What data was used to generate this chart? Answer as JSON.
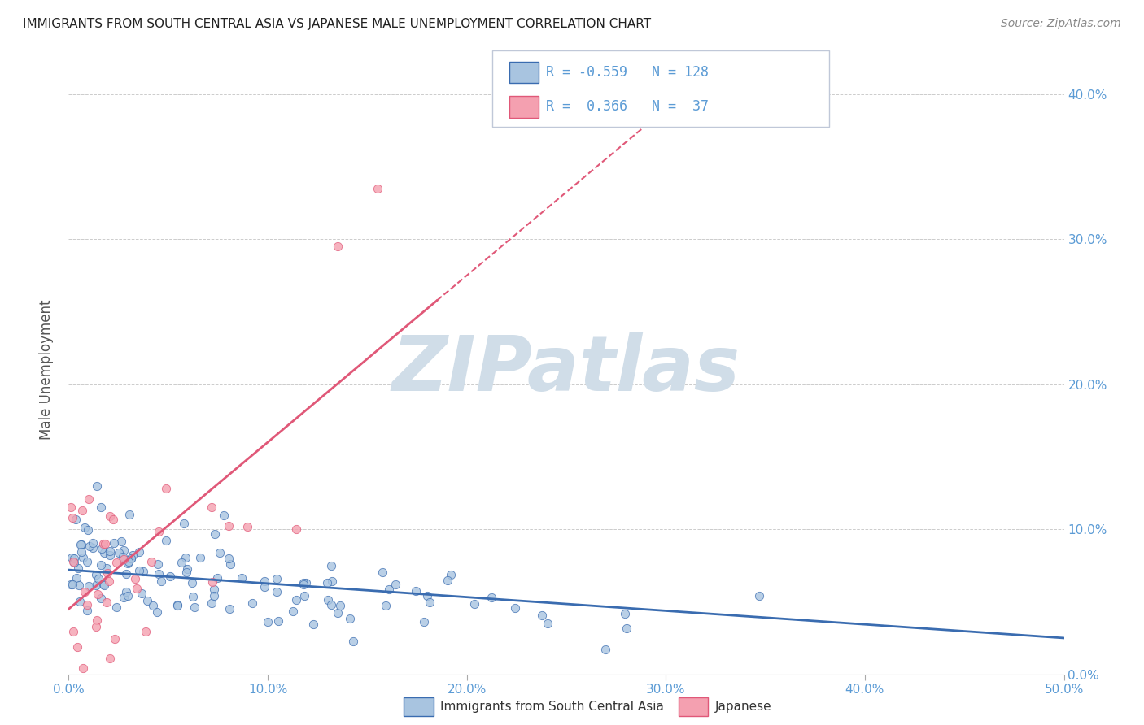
{
  "title": "IMMIGRANTS FROM SOUTH CENTRAL ASIA VS JAPANESE MALE UNEMPLOYMENT CORRELATION CHART",
  "source": "Source: ZipAtlas.com",
  "ylabel": "Male Unemployment",
  "xlim": [
    0.0,
    0.5
  ],
  "ylim": [
    0.0,
    0.42
  ],
  "yticks": [
    0.0,
    0.1,
    0.2,
    0.3,
    0.4
  ],
  "xticks": [
    0.0,
    0.1,
    0.2,
    0.3,
    0.4,
    0.5
  ],
  "blue_R": -0.559,
  "blue_N": 128,
  "pink_R": 0.366,
  "pink_N": 37,
  "blue_color": "#a8c4e0",
  "pink_color": "#f4a0b0",
  "blue_line_color": "#3a6cb0",
  "pink_line_color": "#e05878",
  "axis_label_color": "#5b9bd5",
  "title_color": "#222222",
  "watermark_color": "#d0dde8",
  "watermark_text": "ZIPatlas",
  "background_color": "#ffffff",
  "legend_label_blue": "Immigrants from South Central Asia",
  "legend_label_pink": "Japanese",
  "blue_seed": 42,
  "pink_seed": 7
}
